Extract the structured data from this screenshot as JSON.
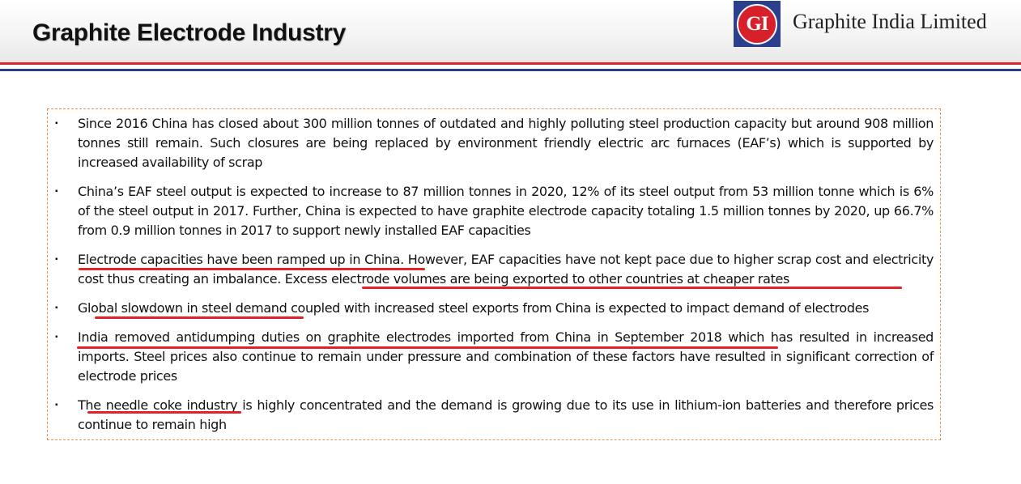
{
  "header": {
    "title": "Graphite Electrode Industry",
    "logo_text": "GI",
    "company_name": "Graphite India Limited"
  },
  "colors": {
    "accent_red": "#d32b30",
    "accent_blue": "#2b3a86",
    "box_border": "#e8904a",
    "underline_red": "#e0222a"
  },
  "bullets": [
    {
      "text": "Since 2016 China has closed about 300 million tonnes of outdated and highly polluting steel production capacity but around 908 million tonnes still remain. Such closures are being replaced by environment friendly electric arc furnaces (EAF’s) which is supported by increased availability of scrap"
    },
    {
      "text": "China’s EAF steel output is expected to increase to 87 million tonnes in 2020, 12% of its steel output from 53 million tonne which is 6% of the steel output in 2017. Further, China is expected to have graphite electrode capacity totaling 1.5 million tonnes by 2020, up 66.7% from 0.9 million tonnes in 2017 to support newly installed EAF capacities"
    },
    {
      "text": "Electrode capacities have been ramped up in China. However, EAF capacities have not kept pace due to higher scrap cost and electricity cost thus creating an imbalance. Excess electrode volumes are being exported to other countries at cheaper rates"
    },
    {
      "text": "Global slowdown in steel demand coupled with increased steel exports from China is expected to impact demand of electrodes"
    },
    {
      "text": "India removed antidumping duties on graphite electrodes imported from China in September 2018 which has resulted in increased imports. Steel prices also continue to remain under pressure and combination of these factors have resulted in significant correction of electrode prices"
    },
    {
      "text": "The needle coke industry is highly concentrated and the demand is growing due to its use in lithium-ion batteries and therefore prices continue to remain high"
    }
  ],
  "bullet_marker": "▪"
}
